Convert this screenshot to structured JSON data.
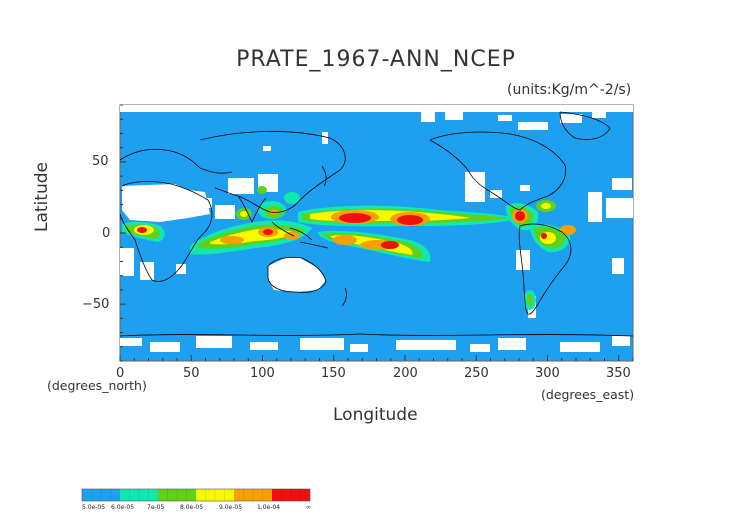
{
  "title": "PRATE_1967-ANN_NCEP",
  "units": "(units:Kg/m^-2/s)",
  "axes": {
    "xlabel": "Longitude",
    "ylabel": "Latitude",
    "x_unit_note": "(degrees_east)",
    "y_unit_note": "(degrees_north)",
    "x_ticks": [
      "0",
      "50",
      "100",
      "150",
      "200",
      "250",
      "300",
      "350"
    ],
    "y_ticks": [
      "50",
      "0",
      "−50"
    ],
    "xlim": [
      0,
      360
    ],
    "ylim": [
      -90,
      90
    ]
  },
  "colorbar": {
    "colors": [
      "#1ea0f0",
      "#10e8b0",
      "#60d018",
      "#f8f800",
      "#f8a000",
      "#f01010"
    ],
    "labels": [
      "5.0e-05",
      "6.0e-05",
      "7e-05",
      "8.0e-05",
      "9.0e-05",
      "1.0e-04",
      "∞"
    ]
  },
  "map": {
    "ocean_color": "#1ea0f0",
    "missing_color": "#ffffff",
    "coast_color": "#000000"
  }
}
